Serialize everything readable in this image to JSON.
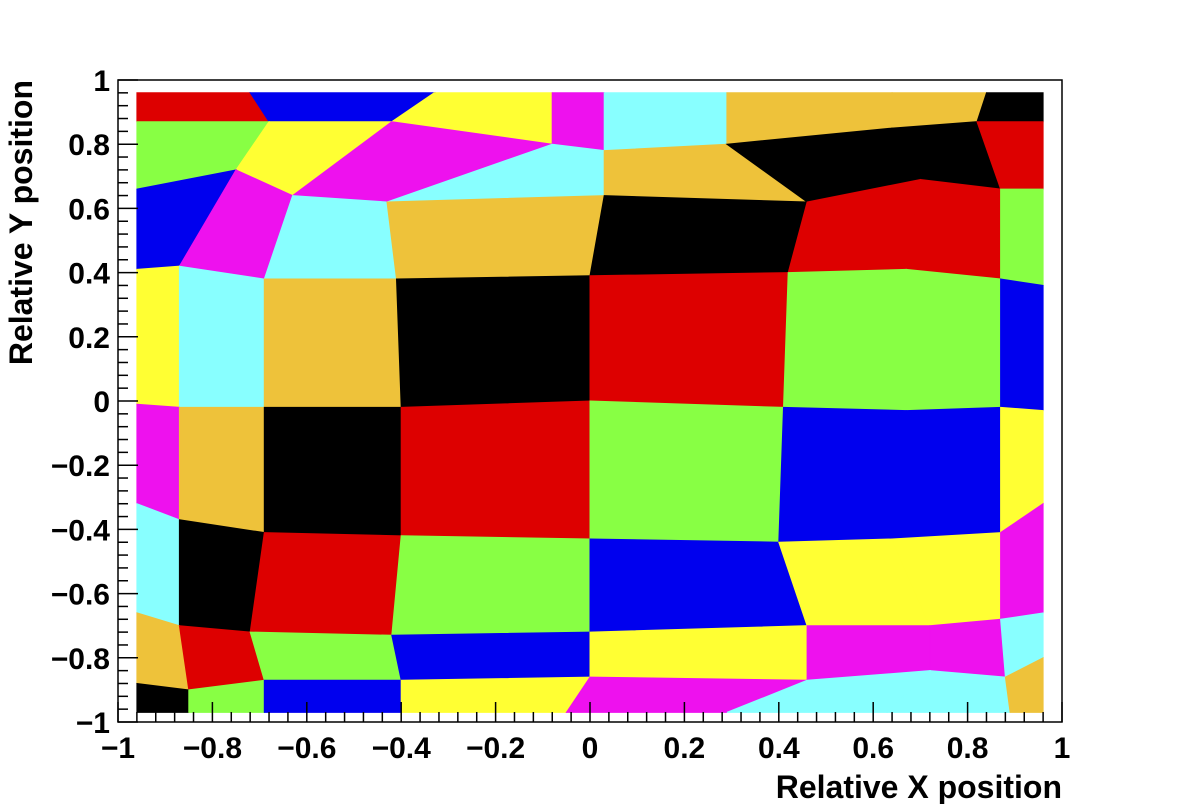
{
  "chart_data": {
    "type": "heatmap",
    "title": "",
    "xlabel": "Relative X position",
    "ylabel": "Relative Y position",
    "xlim": [
      -1,
      1
    ],
    "ylim": [
      -1,
      1
    ],
    "x_ticks": [
      {
        "value": -1,
        "label": "−1"
      },
      {
        "value": -0.8,
        "label": "−0.8"
      },
      {
        "value": -0.6,
        "label": "−0.6"
      },
      {
        "value": -0.4,
        "label": "−0.4"
      },
      {
        "value": -0.2,
        "label": "−0.2"
      },
      {
        "value": 0,
        "label": "0"
      },
      {
        "value": 0.2,
        "label": "0.2"
      },
      {
        "value": 0.4,
        "label": "0.4"
      },
      {
        "value": 0.6,
        "label": "0.6"
      },
      {
        "value": 0.8,
        "label": "0.8"
      },
      {
        "value": 1,
        "label": "1"
      }
    ],
    "y_ticks": [
      {
        "value": -1,
        "label": "−1"
      },
      {
        "value": -0.8,
        "label": "−0.8"
      },
      {
        "value": -0.6,
        "label": "−0.6"
      },
      {
        "value": -0.4,
        "label": "−0.4"
      },
      {
        "value": -0.2,
        "label": "−0.2"
      },
      {
        "value": 0,
        "label": "0"
      },
      {
        "value": 0.2,
        "label": "0.2"
      },
      {
        "value": 0.4,
        "label": "0.4"
      },
      {
        "value": 0.6,
        "label": "0.6"
      },
      {
        "value": 0.8,
        "label": "0.8"
      },
      {
        "value": 1,
        "label": "1"
      }
    ],
    "grid": false,
    "legend": "none",
    "palette": {
      "A": "#000000",
      "B": "#dd0000",
      "C": "#88ff44",
      "D": "#0000ee",
      "E": "#ffff33",
      "F": "#ee11ee",
      "G": "#88ffff",
      "H": "#eec23a"
    },
    "grid_nodes": {
      "rows": 9,
      "cols": 9,
      "x": [
        [
          -0.96,
          -0.72,
          -0.33,
          -0.08,
          0.03,
          0.29,
          0.64,
          0.84,
          0.96
        ],
        [
          -0.96,
          -0.68,
          -0.42,
          -0.08,
          0.03,
          0.29,
          0.64,
          0.82,
          0.96
        ],
        [
          -0.96,
          -0.75,
          -0.63,
          -0.43,
          0.03,
          0.46,
          0.7,
          0.87,
          0.96
        ],
        [
          -0.96,
          -0.87,
          -0.69,
          -0.41,
          0.0,
          0.42,
          0.67,
          0.87,
          0.96
        ],
        [
          -0.96,
          -0.87,
          -0.69,
          -0.4,
          0.0,
          0.41,
          0.67,
          0.87,
          0.96
        ],
        [
          -0.96,
          -0.87,
          -0.69,
          -0.4,
          0.0,
          0.4,
          0.64,
          0.87,
          0.96
        ],
        [
          -0.96,
          -0.87,
          -0.72,
          -0.42,
          0.0,
          0.46,
          0.72,
          0.87,
          0.96
        ],
        [
          -0.96,
          -0.85,
          -0.69,
          -0.4,
          0.0,
          0.46,
          0.72,
          0.88,
          0.96
        ],
        [
          -0.96,
          -0.85,
          -0.69,
          -0.4,
          -0.05,
          0.29,
          0.63,
          0.89,
          0.96
        ]
      ],
      "y": [
        [
          0.96,
          0.96,
          0.96,
          0.96,
          0.96,
          0.96,
          0.96,
          0.96,
          0.96
        ],
        [
          0.87,
          0.87,
          0.87,
          0.8,
          0.78,
          0.8,
          0.85,
          0.87,
          0.87
        ],
        [
          0.66,
          0.72,
          0.64,
          0.62,
          0.64,
          0.62,
          0.69,
          0.66,
          0.66
        ],
        [
          0.41,
          0.42,
          0.38,
          0.38,
          0.39,
          0.4,
          0.41,
          0.38,
          0.36
        ],
        [
          -0.01,
          -0.02,
          -0.02,
          -0.02,
          0.0,
          -0.02,
          -0.03,
          -0.02,
          -0.03
        ],
        [
          -0.32,
          -0.37,
          -0.41,
          -0.42,
          -0.43,
          -0.44,
          -0.43,
          -0.41,
          -0.32
        ],
        [
          -0.66,
          -0.7,
          -0.72,
          -0.73,
          -0.72,
          -0.7,
          -0.7,
          -0.68,
          -0.66
        ],
        [
          -0.88,
          -0.9,
          -0.87,
          -0.87,
          -0.86,
          -0.87,
          -0.84,
          -0.86,
          -0.8
        ],
        [
          -0.97,
          -0.97,
          -0.97,
          -0.97,
          -0.97,
          -0.97,
          -0.97,
          -0.97,
          -0.97
        ]
      ]
    },
    "cell_colors": [
      [
        "B",
        "D",
        "E",
        "F",
        "G",
        "H",
        "H",
        "A"
      ],
      [
        "C",
        "E",
        "F",
        "G",
        "H",
        "A",
        "A",
        "B"
      ],
      [
        "D",
        "F",
        "G",
        "H",
        "A",
        "B",
        "B",
        "C"
      ],
      [
        "E",
        "G",
        "H",
        "A",
        "B",
        "C",
        "C",
        "D"
      ],
      [
        "F",
        "H",
        "A",
        "B",
        "C",
        "D",
        "D",
        "E"
      ],
      [
        "G",
        "A",
        "B",
        "C",
        "D",
        "E",
        "E",
        "F"
      ],
      [
        "H",
        "B",
        "C",
        "D",
        "E",
        "F",
        "F",
        "G"
      ],
      [
        "A",
        "C",
        "D",
        "E",
        "F",
        "G",
        "G",
        "H"
      ]
    ]
  }
}
